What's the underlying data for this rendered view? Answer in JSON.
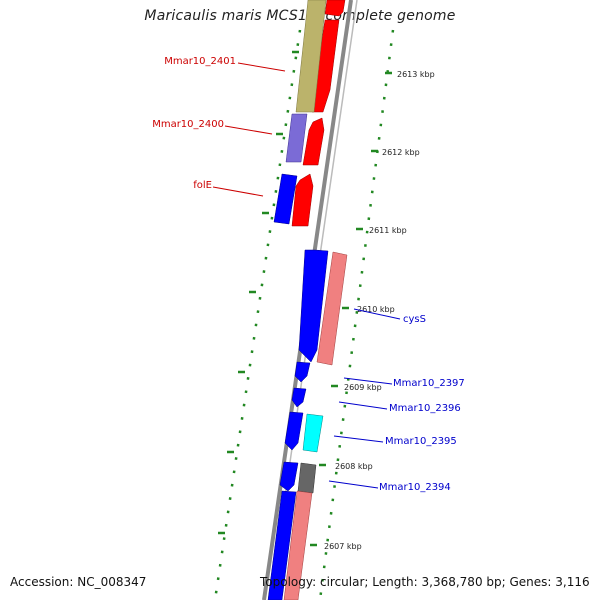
{
  "title": "Maricaulis maris MCS10, complete genome",
  "footer": {
    "accession": "Accession: NC_008347",
    "summary": "Topology: circular; Length: 3,368,780 bp; Genes: 3,116"
  },
  "colors": {
    "forward_gene": "#ff0000",
    "reverse_gene": "#0000ff",
    "forward_label": "#cc0000",
    "reverse_label": "#0000cc",
    "tick": "#228822",
    "backbone": "#888888"
  },
  "scale_ticks": [
    "2613 kbp",
    "2612 kbp",
    "2611 kbp",
    "2610 kbp",
    "2609 kbp",
    "2608 kbp",
    "2607 kbp"
  ],
  "gene_labels": {
    "forward": [
      "Mmar10_2401",
      "Mmar10_2400",
      "folE"
    ],
    "reverse": [
      "cysS",
      "Mmar10_2397",
      "Mmar10_2396",
      "Mmar10_2395",
      "Mmar10_2394"
    ]
  }
}
